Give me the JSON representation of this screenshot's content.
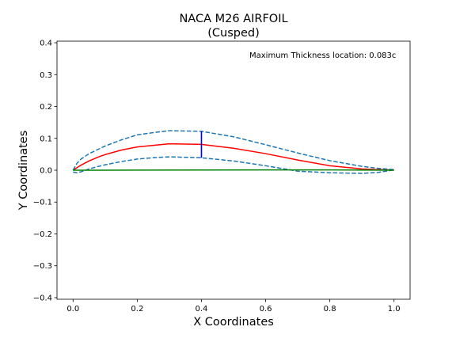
{
  "chart_data": {
    "type": "line",
    "title": "NACA M26 AIRFOIL",
    "subtitle": "(Cusped)",
    "xlabel": "X Coordinates",
    "ylabel": "Y Coordinates",
    "xlim": [
      -0.05,
      1.05
    ],
    "ylim": [
      -0.405,
      0.405
    ],
    "xticks": [
      0.0,
      0.2,
      0.4,
      0.6,
      0.8,
      1.0
    ],
    "xtick_labels": [
      "0.0",
      "0.2",
      "0.4",
      "0.6",
      "0.8",
      "1.0"
    ],
    "yticks": [
      -0.4,
      -0.3,
      -0.2,
      -0.1,
      0.0,
      0.1,
      0.2,
      0.3,
      0.4
    ],
    "ytick_labels": [
      "−0.4",
      "−0.3",
      "−0.2",
      "−0.1",
      "0.0",
      "0.1",
      "0.2",
      "0.3",
      "0.4"
    ],
    "grid": false,
    "annotation": "Maximum Thickness location: 0.083c",
    "series": [
      {
        "style": "solid",
        "color": "#ff0000",
        "x": [
          0.0,
          0.0125,
          0.025,
          0.05,
          0.075,
          0.1,
          0.15,
          0.2,
          0.25,
          0.3,
          0.4,
          0.5,
          0.6,
          0.7,
          0.8,
          0.9,
          0.95,
          1.0
        ],
        "y": [
          0.0,
          0.008,
          0.016,
          0.029,
          0.04,
          0.049,
          0.063,
          0.073,
          0.078,
          0.083,
          0.081,
          0.069,
          0.052,
          0.032,
          0.014,
          0.004,
          0.002,
          0.001
        ]
      },
      {
        "style": "dashed",
        "color": "#1f77b4",
        "x": [
          0.0,
          0.0125,
          0.025,
          0.05,
          0.075,
          0.1,
          0.15,
          0.2,
          0.25,
          0.3,
          0.4,
          0.5,
          0.6,
          0.7,
          0.8,
          0.9,
          0.95,
          1.0
        ],
        "y": [
          0.0,
          0.022,
          0.035,
          0.052,
          0.064,
          0.076,
          0.095,
          0.111,
          0.118,
          0.124,
          0.122,
          0.105,
          0.08,
          0.054,
          0.03,
          0.012,
          0.006,
          0.002
        ]
      },
      {
        "style": "dashed",
        "color": "#1f77b4",
        "x": [
          0.0,
          0.0125,
          0.025,
          0.05,
          0.075,
          0.1,
          0.15,
          0.2,
          0.25,
          0.3,
          0.4,
          0.5,
          0.6,
          0.7,
          0.8,
          0.9,
          0.95,
          1.0
        ],
        "y": [
          -0.006,
          -0.008,
          -0.005,
          0.004,
          0.011,
          0.017,
          0.027,
          0.035,
          0.039,
          0.042,
          0.039,
          0.029,
          0.014,
          -0.003,
          -0.008,
          -0.01,
          -0.007,
          0.001
        ]
      },
      {
        "style": "solid",
        "color": "#008000",
        "x": [
          0.0,
          0.2,
          0.4,
          0.6,
          0.8,
          1.0
        ],
        "y": [
          0.0,
          0.0003,
          0.0007,
          0.001,
          0.0009,
          0.0
        ]
      }
    ],
    "thickness_marker": {
      "color": "#0000ff",
      "x": 0.4,
      "y_from": 0.039,
      "y_to": 0.122
    }
  }
}
